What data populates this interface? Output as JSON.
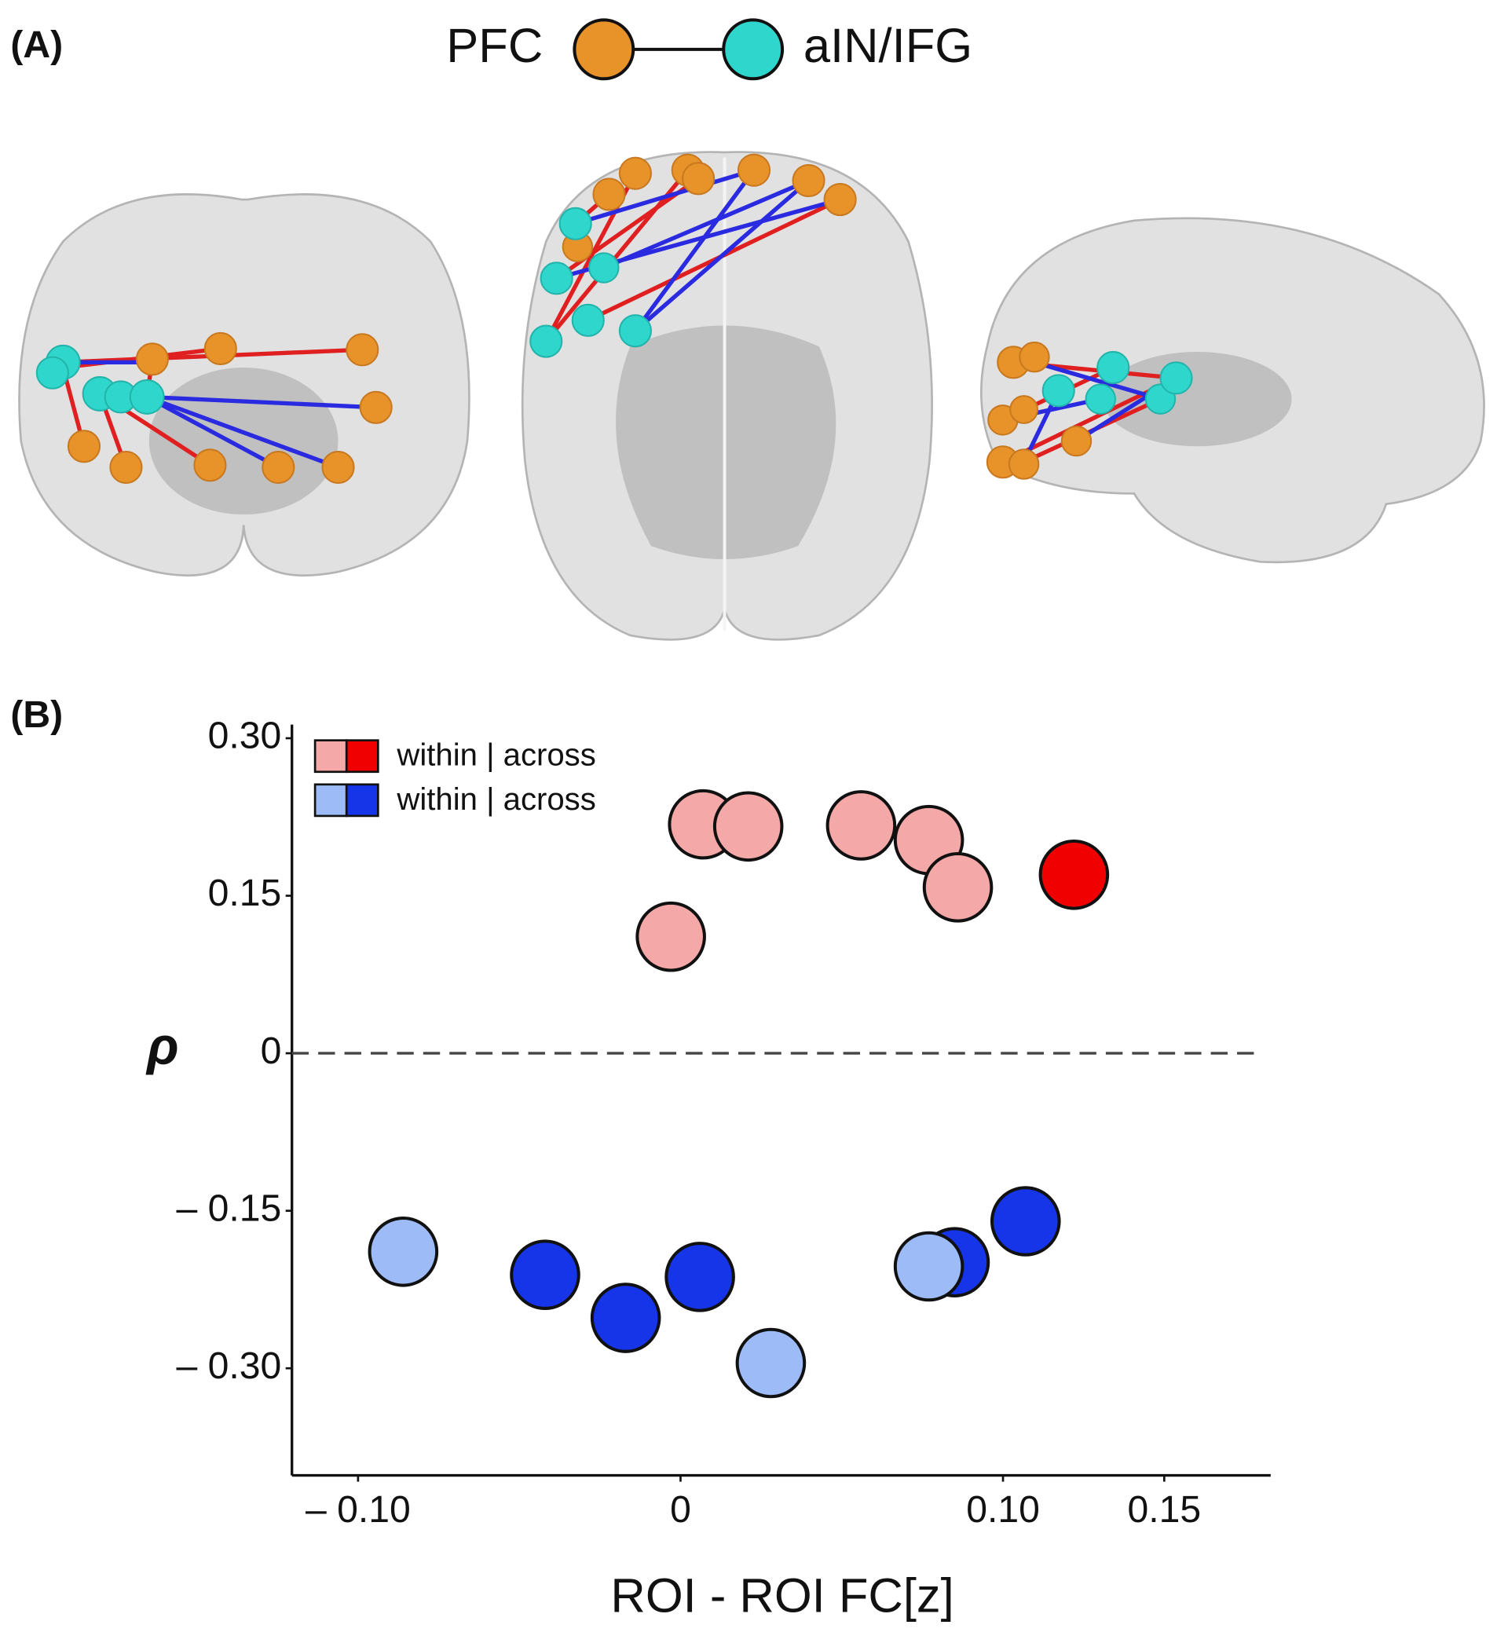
{
  "panel_a": {
    "label": "(A)",
    "legend": [
      "PFC",
      "aIN/IFG"
    ]
  },
  "panel_b": {
    "label": "(B)"
  },
  "chart_data": {
    "type": "scatter",
    "x_label": "ROI - ROI FC[z]",
    "y_label": "ρ",
    "xlim": [
      -0.1205,
      0.183
    ],
    "ylim": [
      -0.402,
      0.313
    ],
    "xticks": [
      {
        "value": -0.1,
        "label": "– 0.10"
      },
      0,
      {
        "value": 0.1,
        "label": "0.10"
      },
      {
        "value": 0.15,
        "label": "0.15"
      }
    ],
    "yticks": [
      {
        "value": 0.3,
        "label": "0.30"
      },
      0.15,
      0,
      {
        "value": -0.15,
        "label": "– 0.15"
      },
      {
        "value": -0.3,
        "label": "– 0.30"
      }
    ],
    "reference_line": 0,
    "legend": [
      {
        "label": "within | across",
        "colors": [
          "#f4a9a8",
          "#f00000"
        ]
      },
      {
        "label": "within | across",
        "colors": [
          "#9dbcf7",
          "#1634e8"
        ]
      }
    ],
    "series": [
      {
        "color": "#f4a9a8",
        "x": [
          0.007,
          0.021,
          0.056,
          0.077,
          0.086,
          -0.003
        ],
        "values": [
          0.218,
          0.216,
          0.217,
          0.203,
          0.158,
          0.111
        ]
      },
      {
        "color": "#f00000",
        "x": [
          0.122
        ],
        "values": [
          0.17
        ]
      },
      {
        "color": "#1634e8",
        "x": [
          -0.042,
          -0.017,
          0.006,
          0.085,
          0.107
        ],
        "values": [
          -0.211,
          -0.252,
          -0.213,
          -0.199,
          -0.16
        ]
      },
      {
        "color": "#9dbcf7",
        "x": [
          -0.086,
          0.028,
          0.077
        ],
        "values": [
          -0.189,
          -0.295,
          -0.203
        ]
      }
    ]
  }
}
